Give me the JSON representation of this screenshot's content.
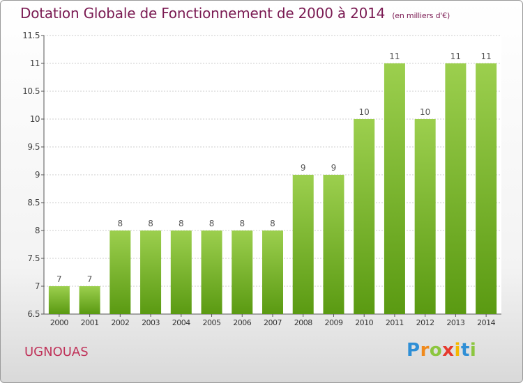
{
  "chart_data": {
    "type": "bar",
    "title": "Dotation Globale de Fonctionnement de 2000 à 2014",
    "subtitle": "(en milliers d'€)",
    "categories": [
      "2000",
      "2001",
      "2002",
      "2003",
      "2004",
      "2005",
      "2006",
      "2007",
      "2008",
      "2009",
      "2010",
      "2011",
      "2012",
      "2013",
      "2014"
    ],
    "values": [
      7,
      7,
      8,
      8,
      8,
      8,
      8,
      8,
      9,
      9,
      10,
      11,
      10,
      11,
      11
    ],
    "data_labels": [
      "7",
      "7",
      "8",
      "8",
      "8",
      "8",
      "8",
      "8",
      "9",
      "9",
      "10",
      "11",
      "10",
      "11",
      "11"
    ],
    "ylim": [
      6.5,
      11.5
    ],
    "yticks": [
      "6.5",
      "7",
      "7.5",
      "8",
      "8.5",
      "9",
      "9.5",
      "10",
      "10.5",
      "11",
      "11.5"
    ],
    "grid": true,
    "legend": "none",
    "bar_color_top": "#9ccf4e",
    "bar_color_bottom": "#5a9a12"
  },
  "footer": {
    "commune": "UGNOUAS",
    "logo": {
      "p": "P",
      "r": "r",
      "o": "o",
      "x": "x",
      "i1": "i",
      "t": "t",
      "i2": "i"
    }
  }
}
